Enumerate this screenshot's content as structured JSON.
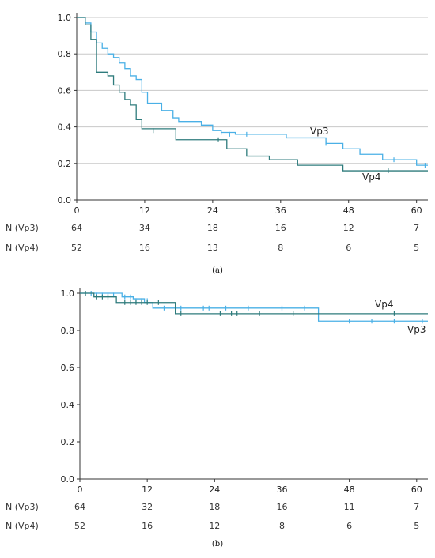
{
  "colors": {
    "Vp3": "#4ab0e6",
    "Vp4": "#2e7b7c",
    "grid": "#c8c8c8",
    "axis": "#333333"
  },
  "chart_data": [
    {
      "panel_caption": "(a)",
      "type": "line",
      "step": true,
      "xlim": [
        0,
        62
      ],
      "ylim": [
        0,
        1.0
      ],
      "xticks": [
        "0",
        "12",
        "24",
        "36",
        "48",
        "60"
      ],
      "yticks": [
        "0.0",
        "0.2",
        "0.4",
        "0.6",
        "0.8",
        "1.0"
      ],
      "grid": true,
      "series": [
        {
          "name": "Vp3",
          "x": [
            0,
            1.5,
            2.5,
            3.5,
            4.5,
            5.5,
            6.5,
            7.5,
            8.5,
            9.5,
            10.5,
            11.5,
            12.5,
            15,
            17,
            18,
            22,
            24,
            25.5,
            28,
            37,
            44,
            47,
            50,
            54,
            56,
            60,
            62
          ],
          "y": [
            1.0,
            0.97,
            0.92,
            0.86,
            0.83,
            0.8,
            0.78,
            0.75,
            0.72,
            0.68,
            0.66,
            0.59,
            0.53,
            0.49,
            0.45,
            0.43,
            0.41,
            0.38,
            0.37,
            0.36,
            0.34,
            0.31,
            0.28,
            0.25,
            0.22,
            0.22,
            0.19,
            0.19
          ],
          "censored": [
            [
              25.5,
              0.37
            ],
            [
              27,
              0.36
            ],
            [
              30,
              0.36
            ],
            [
              44,
              0.31
            ],
            [
              56,
              0.22
            ],
            [
              61.5,
              0.19
            ]
          ]
        },
        {
          "name": "Vp4",
          "x": [
            0,
            1.5,
            2.5,
            3.5,
            5.5,
            6.5,
            7.5,
            8.5,
            9.5,
            10.5,
            11.5,
            17.5,
            26.5,
            30,
            34,
            39,
            47,
            62
          ],
          "y": [
            1.0,
            0.96,
            0.88,
            0.7,
            0.68,
            0.63,
            0.59,
            0.55,
            0.52,
            0.44,
            0.39,
            0.33,
            0.28,
            0.24,
            0.22,
            0.19,
            0.16,
            0.16
          ],
          "censored": [
            [
              13.5,
              0.38
            ],
            [
              25,
              0.33
            ],
            [
              55,
              0.16
            ]
          ]
        }
      ],
      "series_labels": [
        "Vp3",
        "Vp4"
      ],
      "risk_table": {
        "rows": [
          {
            "label": "N (Vp3)",
            "values": [
              "64",
              "34",
              "18",
              "16",
              "12",
              "7"
            ]
          },
          {
            "label": "N (Vp4)",
            "values": [
              "52",
              "16",
              "13",
              "8",
              "6",
              "5"
            ]
          }
        ]
      }
    },
    {
      "panel_caption": "(b)",
      "type": "line",
      "step": true,
      "xlim": [
        0,
        62
      ],
      "ylim": [
        0,
        1.0
      ],
      "xticks": [
        "0",
        "12",
        "24",
        "36",
        "48",
        "60"
      ],
      "yticks": [
        "0.0",
        "0.2",
        "0.4",
        "0.6",
        "0.8",
        "1.0"
      ],
      "grid": false,
      "series": [
        {
          "name": "Vp3",
          "x": [
            0,
            7.5,
            9.5,
            11.5,
            13,
            42.5,
            62
          ],
          "y": [
            1.0,
            0.98,
            0.97,
            0.95,
            0.92,
            0.85,
            0.85
          ],
          "censored": [
            [
              2,
              1.0
            ],
            [
              3,
              0.99
            ],
            [
              4,
              0.99
            ],
            [
              5,
              0.99
            ],
            [
              6,
              0.99
            ],
            [
              8,
              0.98
            ],
            [
              9,
              0.98
            ],
            [
              10,
              0.96
            ],
            [
              11,
              0.96
            ],
            [
              12,
              0.96
            ],
            [
              15,
              0.92
            ],
            [
              18,
              0.92
            ],
            [
              22,
              0.92
            ],
            [
              23,
              0.92
            ],
            [
              26,
              0.92
            ],
            [
              30,
              0.92
            ],
            [
              36,
              0.92
            ],
            [
              40,
              0.92
            ],
            [
              48,
              0.85
            ],
            [
              52,
              0.85
            ],
            [
              56,
              0.85
            ],
            [
              61,
              0.85
            ]
          ]
        },
        {
          "name": "Vp4",
          "x": [
            0,
            2.5,
            6.5,
            17,
            62
          ],
          "y": [
            1.0,
            0.98,
            0.95,
            0.89,
            0.89
          ],
          "censored": [
            [
              1,
              1.0
            ],
            [
              3,
              0.98
            ],
            [
              4,
              0.98
            ],
            [
              5,
              0.98
            ],
            [
              8,
              0.95
            ],
            [
              9,
              0.95
            ],
            [
              10,
              0.95
            ],
            [
              11,
              0.95
            ],
            [
              12,
              0.95
            ],
            [
              14,
              0.95
            ],
            [
              18,
              0.89
            ],
            [
              25,
              0.89
            ],
            [
              27,
              0.89
            ],
            [
              28,
              0.89
            ],
            [
              32,
              0.89
            ],
            [
              38,
              0.89
            ],
            [
              56,
              0.89
            ]
          ]
        }
      ],
      "series_labels": [
        "Vp4",
        "Vp3"
      ],
      "risk_table": {
        "rows": [
          {
            "label": "N (Vp3)",
            "values": [
              "64",
              "32",
              "18",
              "16",
              "11",
              "7"
            ]
          },
          {
            "label": "N (Vp4)",
            "values": [
              "52",
              "16",
              "12",
              "8",
              "6",
              "5"
            ]
          }
        ]
      }
    }
  ]
}
